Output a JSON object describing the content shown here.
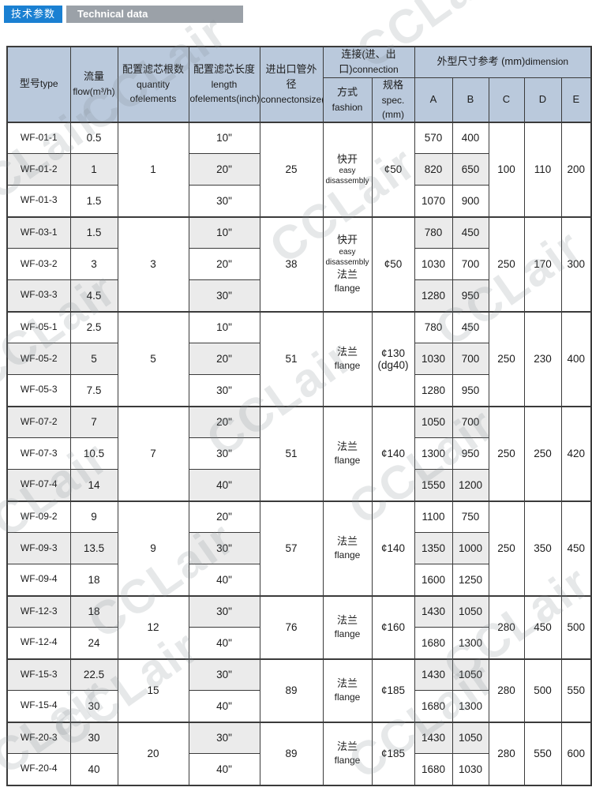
{
  "page": {
    "badge": "技术参数",
    "title": "Technical data"
  },
  "watermark_text": "CCLair",
  "colors": {
    "badge_bg": "#1a80d2",
    "titlebar_bg": "#9ba1a8",
    "header_bg": "#bac9dc",
    "row_alt_bg": "#ebebeb",
    "border": "#3b3b3b"
  },
  "table": {
    "header": {
      "type": [
        "型号",
        "type"
      ],
      "flow": [
        "流量",
        "flow",
        "(m³/h)"
      ],
      "quantity": [
        "配置滤芯根数",
        "quantity of",
        "elements"
      ],
      "length": [
        "配置滤芯长度",
        "length of",
        "elements",
        "(inch)"
      ],
      "size": [
        "进出口管外径",
        "connecton",
        "size",
        "(mm)"
      ],
      "connection": [
        "连接(进、出口)",
        "connection"
      ],
      "fashion": [
        "方式",
        "fashion"
      ],
      "spec": [
        "规格",
        "spec.",
        "(mm)"
      ],
      "dimension": [
        "外型尺寸参考 (mm)",
        "dimension"
      ],
      "dims": [
        "A",
        "B",
        "C",
        "D",
        "E"
      ]
    },
    "groups": [
      {
        "quantity": "1",
        "size": "25",
        "fashion": [
          {
            "t": "快开",
            "lang": "zh"
          },
          {
            "t": "easy",
            "lang": "en-sm"
          },
          {
            "t": "disassembly",
            "lang": "en-sm"
          }
        ],
        "spec": [
          "¢50"
        ],
        "C": "100",
        "D": "110",
        "E": "200",
        "rows": [
          {
            "type": "WF-01-1",
            "flow": "0.5",
            "length": "10\"",
            "A": "570",
            "B": "400",
            "shaded": false
          },
          {
            "type": "WF-01-2",
            "flow": "1",
            "length": "20\"",
            "A": "820",
            "B": "650",
            "shaded": true
          },
          {
            "type": "WF-01-3",
            "flow": "1.5",
            "length": "30\"",
            "A": "1070",
            "B": "900",
            "shaded": false
          }
        ]
      },
      {
        "quantity": "3",
        "size": "38",
        "fashion": [
          {
            "t": "快开",
            "lang": "zh"
          },
          {
            "t": "easy",
            "lang": "en-sm"
          },
          {
            "t": "disassembly",
            "lang": "en-sm"
          },
          {
            "t": "法兰",
            "lang": "zh"
          },
          {
            "t": "flange",
            "lang": "en"
          }
        ],
        "spec": [
          "¢50"
        ],
        "C": "250",
        "D": "170",
        "E": "300",
        "rows": [
          {
            "type": "WF-03-1",
            "flow": "1.5",
            "length": "10\"",
            "A": "780",
            "B": "450",
            "shaded": true
          },
          {
            "type": "WF-03-2",
            "flow": "3",
            "length": "20\"",
            "A": "1030",
            "B": "700",
            "shaded": false
          },
          {
            "type": "WF-03-3",
            "flow": "4.5",
            "length": "30\"",
            "A": "1280",
            "B": "950",
            "shaded": true
          }
        ]
      },
      {
        "quantity": "5",
        "size": "51",
        "fashion": [
          {
            "t": "法兰",
            "lang": "zh"
          },
          {
            "t": "flange",
            "lang": "en"
          }
        ],
        "spec": [
          "¢130",
          "(dg40)"
        ],
        "C": "250",
        "D": "230",
        "E": "400",
        "rows": [
          {
            "type": "WF-05-1",
            "flow": "2.5",
            "length": "10\"",
            "A": "780",
            "B": "450",
            "shaded": false
          },
          {
            "type": "WF-05-2",
            "flow": "5",
            "length": "20\"",
            "A": "1030",
            "B": "700",
            "shaded": true
          },
          {
            "type": "WF-05-3",
            "flow": "7.5",
            "length": "30\"",
            "A": "1280",
            "B": "950",
            "shaded": false
          }
        ]
      },
      {
        "quantity": "7",
        "size": "51",
        "fashion": [
          {
            "t": "法兰",
            "lang": "zh"
          },
          {
            "t": "flange",
            "lang": "en"
          }
        ],
        "spec": [
          "¢140"
        ],
        "C": "250",
        "D": "250",
        "E": "420",
        "rows": [
          {
            "type": "WF-07-2",
            "flow": "7",
            "length": "20\"",
            "A": "1050",
            "B": "700",
            "shaded": true
          },
          {
            "type": "WF-07-3",
            "flow": "10.5",
            "length": "30\"",
            "A": "1300",
            "B": "950",
            "shaded": false
          },
          {
            "type": "WF-07-4",
            "flow": "14",
            "length": "40\"",
            "A": "1550",
            "B": "1200",
            "shaded": true
          }
        ]
      },
      {
        "quantity": "9",
        "size": "57",
        "fashion": [
          {
            "t": "法兰",
            "lang": "zh"
          },
          {
            "t": "flange",
            "lang": "en"
          }
        ],
        "spec": [
          "¢140"
        ],
        "C": "250",
        "D": "350",
        "E": "450",
        "rows": [
          {
            "type": "WF-09-2",
            "flow": "9",
            "length": "20\"",
            "A": "1100",
            "B": "750",
            "shaded": false
          },
          {
            "type": "WF-09-3",
            "flow": "13.5",
            "length": "30\"",
            "A": "1350",
            "B": "1000",
            "shaded": true
          },
          {
            "type": "WF-09-4",
            "flow": "18",
            "length": "40\"",
            "A": "1600",
            "B": "1250",
            "shaded": false
          }
        ]
      },
      {
        "quantity": "12",
        "size": "76",
        "fashion": [
          {
            "t": "法兰",
            "lang": "zh"
          },
          {
            "t": "flange",
            "lang": "en"
          }
        ],
        "spec": [
          "¢160"
        ],
        "C": "280",
        "D": "450",
        "E": "500",
        "rows": [
          {
            "type": "WF-12-3",
            "flow": "18",
            "length": "30\"",
            "A": "1430",
            "B": "1050",
            "shaded": true
          },
          {
            "type": "WF-12-4",
            "flow": "24",
            "length": "40\"",
            "A": "1680",
            "B": "1300",
            "shaded": false
          }
        ]
      },
      {
        "quantity": "15",
        "size": "89",
        "fashion": [
          {
            "t": "法兰",
            "lang": "zh"
          },
          {
            "t": "flange",
            "lang": "en"
          }
        ],
        "spec": [
          "¢185"
        ],
        "C": "280",
        "D": "500",
        "E": "550",
        "rows": [
          {
            "type": "WF-15-3",
            "flow": "22.5",
            "length": "30\"",
            "A": "1430",
            "B": "1050",
            "shaded": true
          },
          {
            "type": "WF-15-4",
            "flow": "30",
            "length": "40\"",
            "A": "1680",
            "B": "1300",
            "shaded": false
          }
        ]
      },
      {
        "quantity": "20",
        "size": "89",
        "fashion": [
          {
            "t": "法兰",
            "lang": "zh"
          },
          {
            "t": "flange",
            "lang": "en"
          }
        ],
        "spec": [
          "¢185"
        ],
        "C": "280",
        "D": "550",
        "E": "600",
        "rows": [
          {
            "type": "WF-20-3",
            "flow": "30",
            "length": "30\"",
            "A": "1430",
            "B": "1050",
            "shaded": true
          },
          {
            "type": "WF-20-4",
            "flow": "40",
            "length": "40\"",
            "A": "1680",
            "B": "1030",
            "shaded": false
          }
        ]
      }
    ]
  }
}
